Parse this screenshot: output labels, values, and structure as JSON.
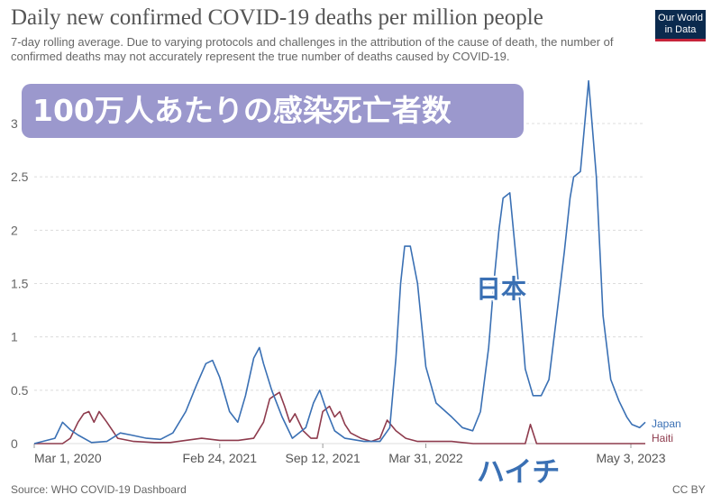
{
  "header": {
    "title": "Daily new confirmed COVID-19 deaths per million people",
    "subtitle": "7-day rolling average. Due to varying protocols and challenges in the attribution of the cause of death, the number of confirmed deaths may not accurately represent the true number of deaths caused by COVID-19."
  },
  "logo": {
    "line1": "Our World",
    "line2": "in Data"
  },
  "banner": {
    "text": "100万人あたりの感染死亡者数"
  },
  "footer": {
    "source": "Source: WHO COVID-19 Dashboard",
    "license": "CC BY"
  },
  "colors": {
    "japan": "#3a70b4",
    "haiti": "#8e3b4d",
    "grid": "#dcdcdc",
    "banner": "#9b98cd"
  },
  "chart_data": {
    "type": "line",
    "ylim": [
      0,
      3
    ],
    "y_ticks": [
      0,
      0.5,
      1,
      1.5,
      2,
      2.5,
      3
    ],
    "y_tick_labels": [
      "0",
      "0.5",
      "1",
      "1.5",
      "2",
      "2.5",
      "3"
    ],
    "x_ticks": [
      "2020-03-01",
      "2021-02-24",
      "2021-09-12",
      "2022-03-31",
      "2023-05-03"
    ],
    "x_tick_labels": [
      "Mar 1, 2020",
      "Feb 24, 2021",
      "Sep 12, 2021",
      "Mar 31, 2022",
      "May 3, 2023"
    ],
    "xlim": [
      "2020-03-01",
      "2023-05-31"
    ],
    "annotations": [
      {
        "text": "日本",
        "series": "Japan"
      },
      {
        "text": "ハイチ",
        "series": "Haiti"
      }
    ],
    "series": [
      {
        "name": "Japan",
        "color": "#3a70b4",
        "x": [
          "2020-03-01",
          "2020-04-10",
          "2020-04-25",
          "2020-05-10",
          "2020-05-25",
          "2020-06-20",
          "2020-07-20",
          "2020-08-15",
          "2020-09-05",
          "2020-10-05",
          "2020-11-01",
          "2020-11-25",
          "2020-12-20",
          "2021-01-10",
          "2021-01-28",
          "2021-02-10",
          "2021-02-24",
          "2021-03-15",
          "2021-03-31",
          "2021-04-15",
          "2021-05-01",
          "2021-05-12",
          "2021-05-20",
          "2021-06-05",
          "2021-06-25",
          "2021-07-15",
          "2021-08-10",
          "2021-08-25",
          "2021-09-06",
          "2021-09-20",
          "2021-10-05",
          "2021-10-25",
          "2021-12-01",
          "2022-01-01",
          "2022-01-20",
          "2022-02-01",
          "2022-02-10",
          "2022-02-18",
          "2022-03-01",
          "2022-03-15",
          "2022-03-31",
          "2022-04-20",
          "2022-05-20",
          "2022-06-10",
          "2022-06-30",
          "2022-07-15",
          "2022-07-31",
          "2022-08-10",
          "2022-08-20",
          "2022-08-28",
          "2022-09-10",
          "2022-09-25",
          "2022-10-10",
          "2022-10-25",
          "2022-11-10",
          "2022-11-25",
          "2022-12-10",
          "2022-12-25",
          "2023-01-05",
          "2023-01-12",
          "2023-01-25",
          "2023-02-10",
          "2023-02-25",
          "2023-03-10",
          "2023-03-25",
          "2023-04-10",
          "2023-04-25",
          "2023-05-05",
          "2023-05-20",
          "2023-05-31"
        ],
        "values": [
          0.0,
          0.05,
          0.2,
          0.13,
          0.08,
          0.01,
          0.02,
          0.1,
          0.08,
          0.05,
          0.04,
          0.1,
          0.3,
          0.55,
          0.75,
          0.78,
          0.62,
          0.3,
          0.2,
          0.45,
          0.8,
          0.9,
          0.75,
          0.5,
          0.25,
          0.05,
          0.15,
          0.38,
          0.5,
          0.3,
          0.12,
          0.05,
          0.02,
          0.02,
          0.15,
          0.8,
          1.5,
          1.85,
          1.85,
          1.5,
          0.72,
          0.38,
          0.25,
          0.15,
          0.12,
          0.3,
          0.9,
          1.5,
          2.0,
          2.3,
          2.35,
          1.6,
          0.7,
          0.45,
          0.45,
          0.6,
          1.2,
          1.8,
          2.3,
          2.5,
          2.55,
          3.4,
          2.5,
          1.2,
          0.6,
          0.4,
          0.25,
          0.18,
          0.15,
          0.2
        ]
      },
      {
        "name": "Haiti",
        "color": "#8e3b4d",
        "x": [
          "2020-03-01",
          "2020-04-25",
          "2020-05-10",
          "2020-05-25",
          "2020-06-05",
          "2020-06-15",
          "2020-06-25",
          "2020-07-05",
          "2020-07-20",
          "2020-08-10",
          "2020-09-10",
          "2020-10-20",
          "2020-11-20",
          "2020-12-20",
          "2021-01-20",
          "2021-02-24",
          "2021-04-01",
          "2021-05-01",
          "2021-05-20",
          "2021-06-01",
          "2021-06-10",
          "2021-06-20",
          "2021-06-30",
          "2021-07-10",
          "2021-07-20",
          "2021-08-05",
          "2021-08-20",
          "2021-09-01",
          "2021-09-12",
          "2021-09-25",
          "2021-10-05",
          "2021-10-15",
          "2021-10-25",
          "2021-11-05",
          "2021-11-25",
          "2021-12-15",
          "2022-01-01",
          "2022-01-15",
          "2022-02-01",
          "2022-02-20",
          "2022-03-15",
          "2022-04-10",
          "2022-05-20",
          "2022-07-01",
          "2022-09-01",
          "2022-10-10",
          "2022-10-20",
          "2022-11-01",
          "2022-12-15",
          "2023-03-01",
          "2023-05-31"
        ],
        "values": [
          0.0,
          0.0,
          0.05,
          0.2,
          0.28,
          0.3,
          0.2,
          0.3,
          0.2,
          0.05,
          0.02,
          0.01,
          0.01,
          0.03,
          0.05,
          0.03,
          0.03,
          0.05,
          0.2,
          0.42,
          0.45,
          0.48,
          0.35,
          0.2,
          0.28,
          0.12,
          0.05,
          0.05,
          0.3,
          0.35,
          0.25,
          0.3,
          0.18,
          0.1,
          0.05,
          0.02,
          0.05,
          0.22,
          0.12,
          0.05,
          0.02,
          0.02,
          0.02,
          0.0,
          0.0,
          0.0,
          0.18,
          0.0,
          0.0,
          0.0,
          0.0
        ]
      }
    ]
  }
}
